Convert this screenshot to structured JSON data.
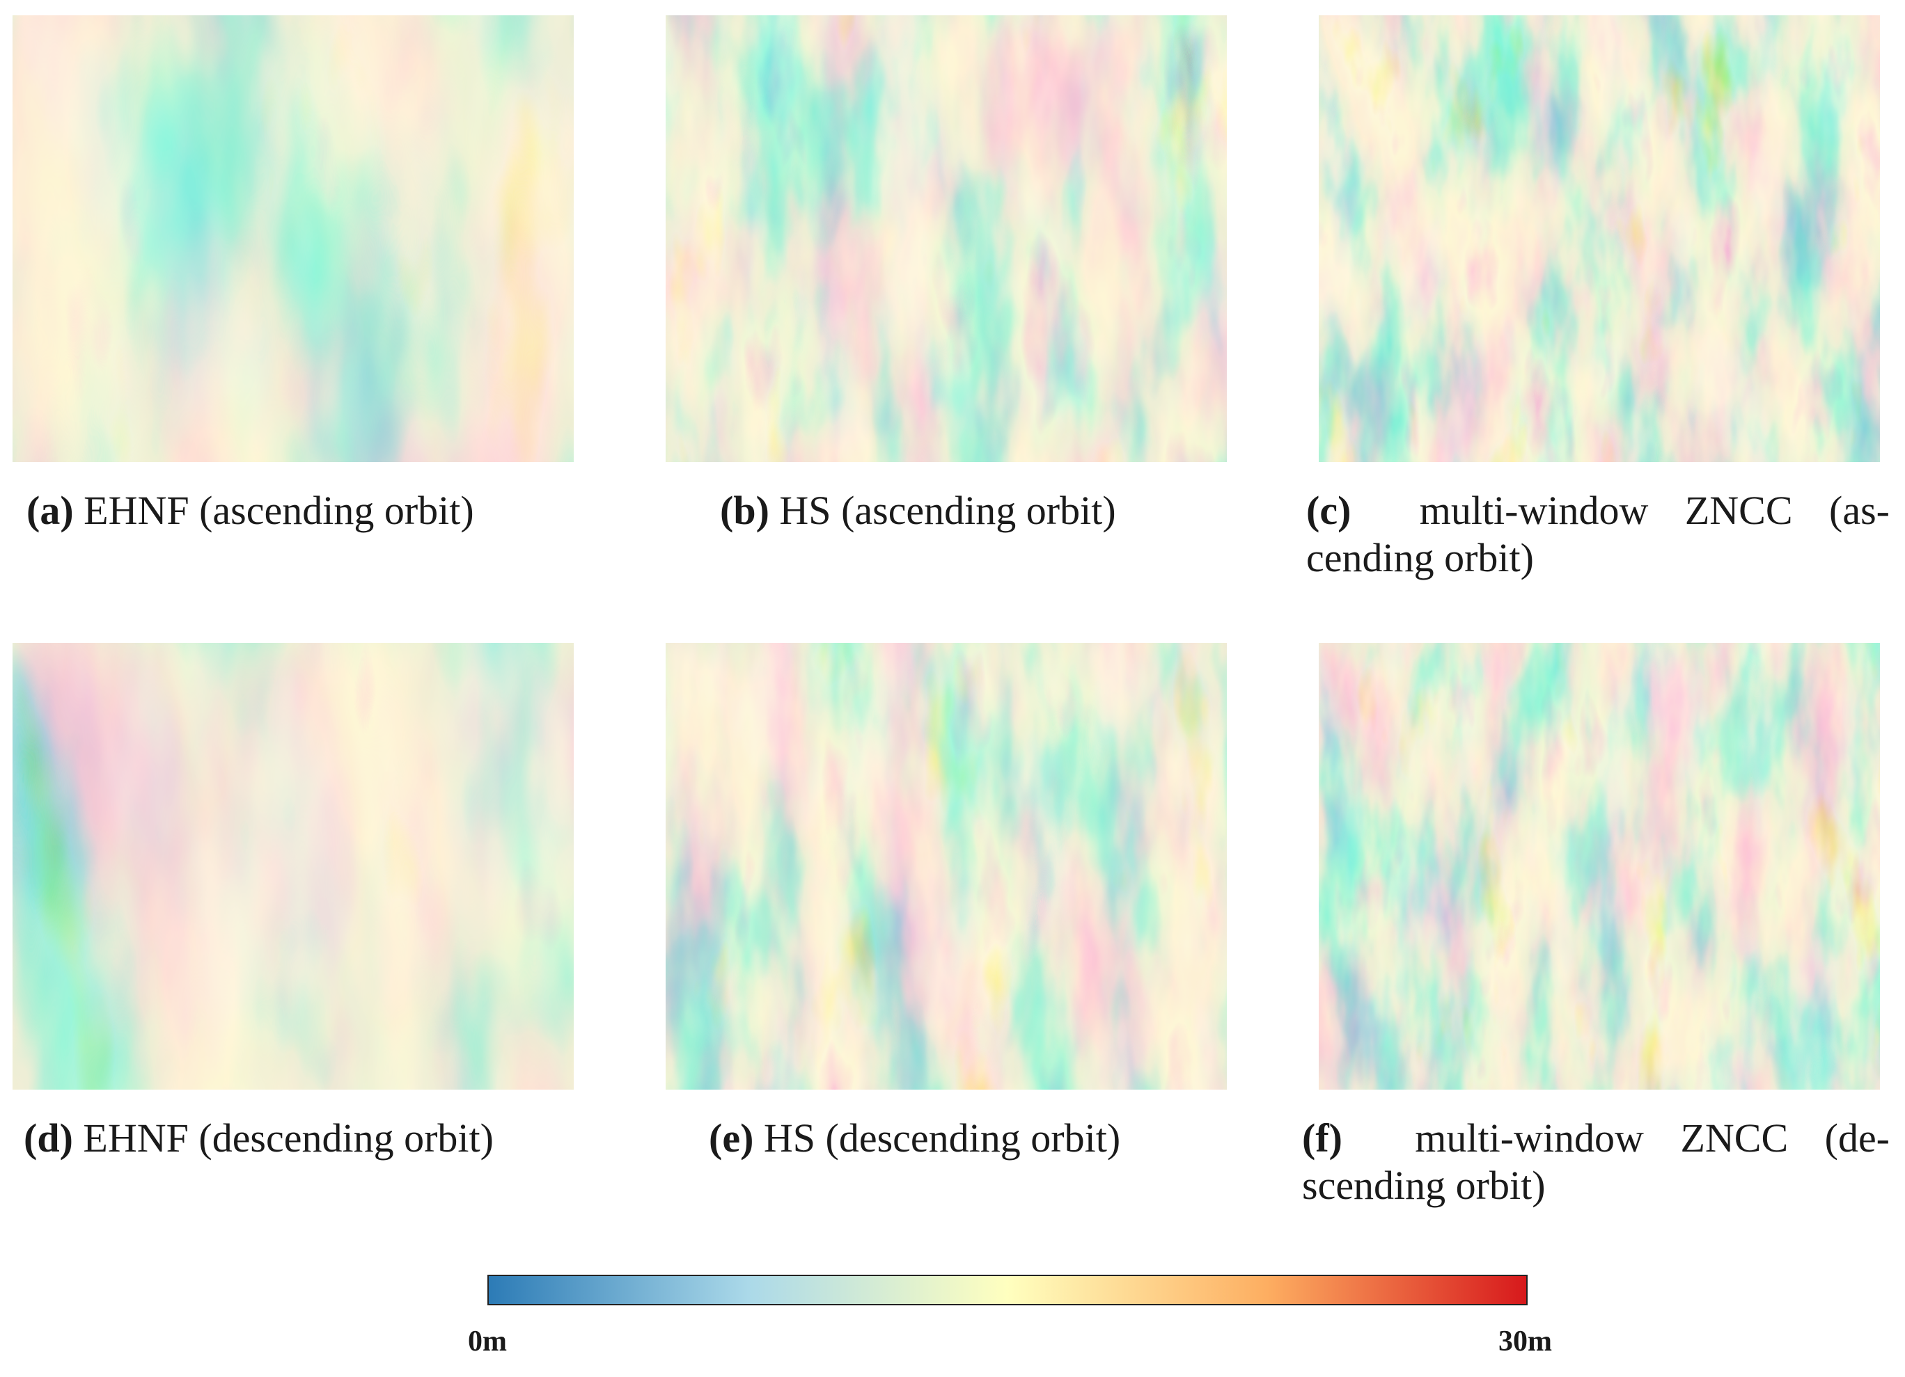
{
  "figure": {
    "panels": [
      {
        "id": "a",
        "label": "a",
        "text": "EHNF (ascending orbit)",
        "texture": {
          "base_hue_shift": 0.05,
          "red_density": 0.08,
          "seed": 11,
          "smooth": 2.4
        }
      },
      {
        "id": "b",
        "label": "b",
        "text": "HS (ascending orbit)",
        "texture": {
          "base_hue_shift": 0.0,
          "red_density": 0.05,
          "seed": 23,
          "smooth": 1.2
        }
      },
      {
        "id": "c",
        "label": "c",
        "line1": "multi-window ZNCC (as-",
        "line2": "cending orbit)",
        "texture": {
          "base_hue_shift": 0.15,
          "red_density": 0.12,
          "seed": 37,
          "smooth": 0.9
        }
      },
      {
        "id": "d",
        "label": "d",
        "text": "EHNF (descending orbit)",
        "texture": {
          "base_hue_shift": 0.0,
          "red_density": 0.01,
          "seed": 41,
          "smooth": 2.4
        }
      },
      {
        "id": "e",
        "label": "e",
        "text": "HS (descending orbit)",
        "texture": {
          "base_hue_shift": -0.05,
          "red_density": 0.01,
          "seed": 53,
          "smooth": 1.2
        }
      },
      {
        "id": "f",
        "label": "f",
        "line1": "multi-window ZNCC (de-",
        "line2": "scending orbit)",
        "texture": {
          "base_hue_shift": -0.05,
          "red_density": 0.03,
          "seed": 67,
          "smooth": 0.9
        }
      }
    ],
    "colorbar": {
      "min_label": "0m",
      "max_label": "30m",
      "colors": [
        "#2c7bb6",
        "#abd9e9",
        "#ffffbf",
        "#fdae61",
        "#d7191c"
      ]
    }
  }
}
